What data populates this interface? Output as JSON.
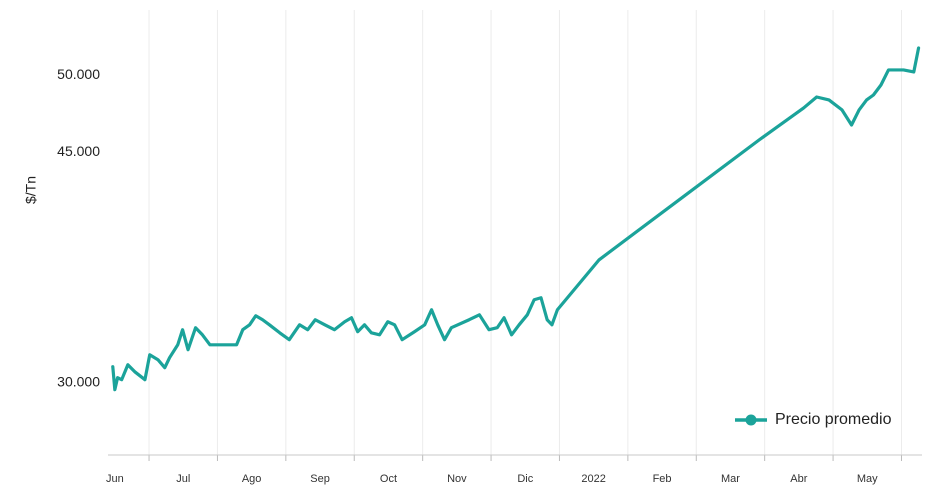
{
  "chart_data": {
    "type": "line",
    "y_label": "$/Tn",
    "xlim": [
      -0.1,
      11.8
    ],
    "xticks": [
      {
        "value": 0,
        "label": "Jun"
      },
      {
        "value": 1,
        "label": "Jul"
      },
      {
        "value": 2,
        "label": "Ago"
      },
      {
        "value": 3,
        "label": "Sep"
      },
      {
        "value": 4,
        "label": "Oct"
      },
      {
        "value": 5,
        "label": "Nov"
      },
      {
        "value": 6,
        "label": "Dic"
      },
      {
        "value": 7,
        "label": "2022"
      },
      {
        "value": 8,
        "label": "Feb"
      },
      {
        "value": 9,
        "label": "Mar"
      },
      {
        "value": 10,
        "label": "Abr"
      },
      {
        "value": 11,
        "label": "May"
      }
    ],
    "ylim": [
      25300,
      54250
    ],
    "yticks": [
      {
        "value": 30000,
        "label": "30.000"
      },
      {
        "value": 45000,
        "label": "45.000"
      },
      {
        "value": 50000,
        "label": "50.000"
      }
    ],
    "grid": true,
    "legend": "lower right",
    "series": [
      {
        "name": "Precio promedio",
        "color": "#1ba39a",
        "x": [
          -0.03,
          0,
          0.04,
          0.1,
          0.19,
          0.29,
          0.44,
          0.51,
          0.63,
          0.73,
          0.8,
          0.92,
          0.99,
          1.07,
          1.18,
          1.28,
          1.39,
          1.53,
          1.78,
          1.87,
          1.97,
          2.06,
          2.16,
          2.26,
          2.41,
          2.55,
          2.7,
          2.82,
          2.93,
          3.07,
          3.21,
          3.36,
          3.46,
          3.55,
          3.65,
          3.75,
          3.87,
          3.99,
          4.09,
          4.2,
          4.38,
          4.53,
          4.63,
          4.72,
          4.82,
          4.92,
          5.18,
          5.33,
          5.47,
          5.59,
          5.69,
          5.8,
          5.91,
          6.03,
          6.13,
          6.23,
          6.32,
          6.39,
          6.47,
          7.08,
          8.25,
          9.42,
          10.07,
          10.26,
          10.44,
          10.63,
          10.77,
          10.88,
          10.99,
          11.09,
          11.2,
          11.31,
          11.53,
          11.68,
          11.75
        ],
        "values": [
          31040,
          29550,
          30330,
          30200,
          31170,
          30720,
          30200,
          31820,
          31500,
          30980,
          31630,
          32470,
          33450,
          32150,
          33580,
          33120,
          32470,
          32470,
          32470,
          33450,
          33770,
          34360,
          34100,
          33770,
          33250,
          32800,
          33770,
          33450,
          34100,
          33770,
          33450,
          33970,
          34230,
          33320,
          33770,
          33250,
          33120,
          33970,
          33770,
          32800,
          33320,
          33770,
          34750,
          33770,
          32800,
          33580,
          34100,
          34420,
          33450,
          33580,
          34230,
          33120,
          33770,
          34420,
          35400,
          35530,
          34100,
          33770,
          34750,
          38000,
          41900,
          45800,
          47880,
          48590,
          48400,
          47750,
          46770,
          47750,
          48400,
          48720,
          49370,
          50350,
          50350,
          50220,
          51780
        ]
      }
    ]
  }
}
